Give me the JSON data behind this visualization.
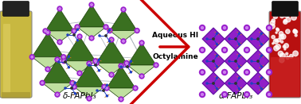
{
  "title": "",
  "arrow_text_line1": "Aqueous HI",
  "arrow_text_line2": "Octylamine",
  "label_left": "δ-FAPbI₃",
  "label_right": "α-FAPbI₃",
  "arrow_color": "#cc0000",
  "arrow_text_color": "#000000",
  "label_fontsize": 7.5,
  "arrow_label_fontsize": 6.5,
  "bg_color": "#ffffff",
  "fig_width": 3.78,
  "fig_height": 1.31,
  "dpi": 100,
  "delta_crystal_color": "#3a7020",
  "delta_crystal_light": "#c0e0a0",
  "node_color_purple": "#9920cc",
  "node_color_blue": "#2040c0",
  "node_color_orange": "#d08010",
  "alpha_bg_color": "#9020c8",
  "alpha_cross_color": "#6010a0",
  "alpha_node_outer": "#9920cc",
  "alpha_node_inner": "#cc80ee",
  "vial_left_body": "#c8b840",
  "vial_left_cap": "#222222",
  "vial_right_body": "#b81010",
  "vial_right_cap": "#111111"
}
